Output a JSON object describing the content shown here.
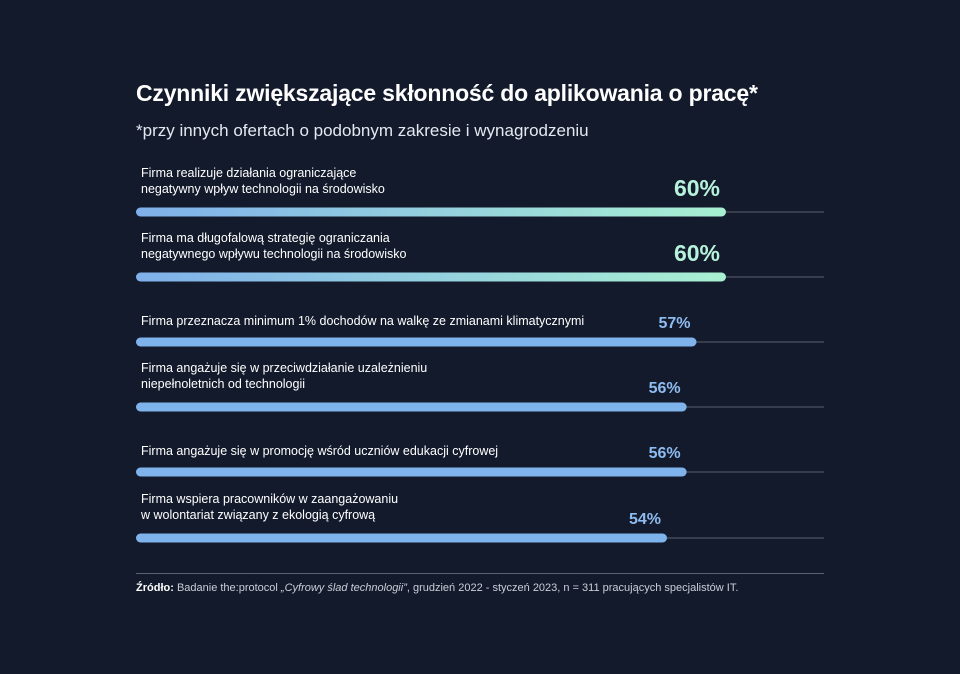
{
  "header": {
    "title": "Czynniki zwiększające skłonność do aplikowania o pracę*",
    "subtitle": "*przy innych ofertach o podobnym zakresie i wynagrodzeniu"
  },
  "colors": {
    "background": "#131a2b",
    "bar_gradient_start": "#7fb0ea",
    "bar_gradient_end": "#a8f0d2",
    "bar_blue": "#7fb3ec",
    "value_highlight": "#b6f2dc",
    "value_blue": "#8fbcf0",
    "track_line": "#5a6272"
  },
  "chart_data": {
    "type": "bar",
    "orientation": "horizontal",
    "title": "Czynniki zwiększające skłonność do aplikowania o pracę*",
    "subtitle": "*przy innych ofertach o podobnym zakresie i wynagrodzeniu",
    "unit": "%",
    "xlim": [
      0,
      100
    ],
    "categories": [
      [
        "Firma realizuje działania ograniczające",
        "negatywny wpływ technologii na środowisko"
      ],
      [
        "Firma ma długofalową strategię ograniczania",
        "negatywnego wpływu technologii na środowisko"
      ],
      [
        "Firma przeznacza minimum 1% dochodów na walkę ze zmianami klimatycznymi"
      ],
      [
        "Firma angażuje się w przeciwdziałanie uzależnieniu",
        "niepełnoletnich od technologii"
      ],
      [
        "Firma angażuje się w promocję wśród uczniów edukacji cyfrowej"
      ],
      [
        "Firma wspiera pracowników w zaangażowaniu",
        "w wolontariat związany z ekologią cyfrową"
      ]
    ],
    "values": [
      60,
      60,
      57,
      56,
      56,
      54
    ],
    "value_labels": [
      "60%",
      "60%",
      "57%",
      "56%",
      "56%",
      "54%"
    ],
    "highlighted": [
      true,
      true,
      false,
      false,
      false,
      false
    ],
    "grid": false,
    "legend": "none"
  },
  "source": {
    "prefix": "Źródło:",
    "text_before": " Badanie the:protocol ",
    "italic": "„Cyfrowy ślad technologii”",
    "text_after": ", grudzień 2022 - styczeń 2023, n = 311 pracujących specjalistów IT."
  }
}
